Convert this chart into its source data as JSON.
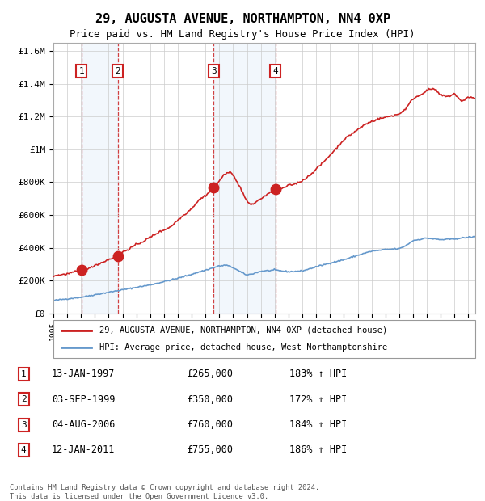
{
  "title": "29, AUGUSTA AVENUE, NORTHAMPTON, NN4 0XP",
  "subtitle": "Price paid vs. HM Land Registry's House Price Index (HPI)",
  "title_fontsize": 11,
  "subtitle_fontsize": 9,
  "background_color": "#ffffff",
  "plot_bg_color": "#ffffff",
  "grid_color": "#cccccc",
  "ylim": [
    0,
    1650000
  ],
  "yticks": [
    0,
    200000,
    400000,
    600000,
    800000,
    1000000,
    1200000,
    1400000,
    1600000
  ],
  "ytick_labels": [
    "£0",
    "£200K",
    "£400K",
    "£600K",
    "£800K",
    "£1M",
    "£1.2M",
    "£1.4M",
    "£1.6M"
  ],
  "hpi_color": "#6699cc",
  "price_color": "#cc2222",
  "sale_marker_color": "#cc2222",
  "sale_dot_size": 80,
  "legend_label_price": "29, AUGUSTA AVENUE, NORTHAMPTON, NN4 0XP (detached house)",
  "legend_label_hpi": "HPI: Average price, detached house, West Northamptonshire",
  "transactions": [
    {
      "num": 1,
      "date": "13-JAN-1997",
      "year": 1997.04,
      "price": 265000,
      "pct": "183% ↑ HPI"
    },
    {
      "num": 2,
      "date": "03-SEP-1999",
      "year": 1999.67,
      "price": 350000,
      "pct": "172% ↑ HPI"
    },
    {
      "num": 3,
      "date": "04-AUG-2006",
      "year": 2006.59,
      "price": 760000,
      "pct": "184% ↑ HPI"
    },
    {
      "num": 4,
      "date": "12-JAN-2011",
      "year": 2011.04,
      "price": 755000,
      "pct": "186% ↑ HPI"
    }
  ],
  "footer": "Contains HM Land Registry data © Crown copyright and database right 2024.\nThis data is licensed under the Open Government Licence v3.0.",
  "xmin": 1995,
  "xmax": 2025.5,
  "hpi_key_years": [
    1995,
    1996,
    1997,
    1998,
    1999,
    2000,
    2001,
    2002,
    2003,
    2004,
    2005,
    2006,
    2007,
    2007.5,
    2008,
    2008.5,
    2009,
    2009.5,
    2010,
    2011,
    2012,
    2013,
    2014,
    2015,
    2016,
    2017,
    2018,
    2019,
    2020,
    2020.5,
    2021,
    2022,
    2023,
    2024,
    2025,
    2025.5
  ],
  "hpi_key_vals": [
    80000,
    90000,
    100000,
    115000,
    130000,
    145000,
    160000,
    175000,
    195000,
    215000,
    240000,
    265000,
    290000,
    295000,
    280000,
    255000,
    235000,
    245000,
    258000,
    265000,
    255000,
    260000,
    285000,
    308000,
    328000,
    355000,
    380000,
    390000,
    395000,
    415000,
    445000,
    460000,
    450000,
    455000,
    465000,
    468000
  ],
  "price_key_years": [
    1995,
    1996,
    1997.04,
    1997.5,
    1998,
    1998.5,
    1999,
    1999.67,
    2000,
    2000.5,
    2001,
    2001.5,
    2002,
    2002.5,
    2003,
    2003.5,
    2004,
    2004.5,
    2005,
    2005.5,
    2006,
    2006.59,
    2007,
    2007.3,
    2007.8,
    2008,
    2008.5,
    2009,
    2009.3,
    2009.5,
    2010,
    2011.04,
    2011.5,
    2012,
    2012.5,
    2013,
    2013.5,
    2014,
    2014.5,
    2015,
    2015.5,
    2016,
    2016.5,
    2017,
    2017.5,
    2018,
    2018.5,
    2019,
    2019.5,
    2020,
    2020.5,
    2021,
    2021.5,
    2022,
    2022.5,
    2023,
    2023.5,
    2024,
    2024.5,
    2025,
    2025.5
  ],
  "price_key_vals": [
    230000,
    242000,
    265000,
    270000,
    295000,
    310000,
    330000,
    350000,
    375000,
    395000,
    420000,
    440000,
    465000,
    490000,
    510000,
    530000,
    570000,
    605000,
    640000,
    690000,
    720000,
    760000,
    810000,
    840000,
    870000,
    840000,
    770000,
    680000,
    665000,
    670000,
    700000,
    755000,
    760000,
    780000,
    790000,
    810000,
    840000,
    880000,
    920000,
    965000,
    1010000,
    1060000,
    1090000,
    1120000,
    1150000,
    1170000,
    1185000,
    1195000,
    1205000,
    1215000,
    1250000,
    1310000,
    1330000,
    1360000,
    1370000,
    1330000,
    1320000,
    1340000,
    1290000,
    1320000,
    1310000
  ]
}
